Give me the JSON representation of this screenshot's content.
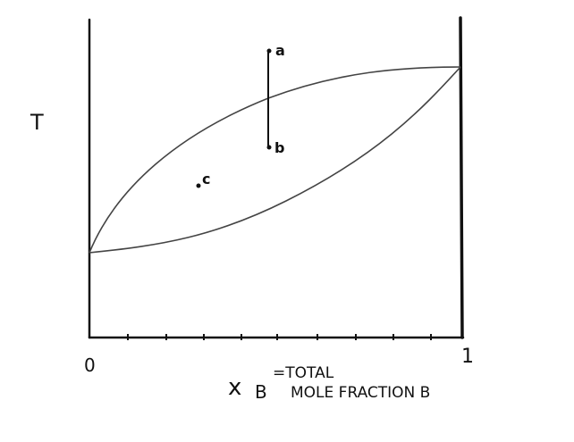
{
  "axes": {
    "y_label": "T",
    "x_ticks": [
      "0",
      "1"
    ],
    "x_label": {
      "symbol": "x",
      "subscript": "B",
      "line1": "=TOTAL",
      "line2": "MOLE FRACTION B"
    }
  },
  "points": [
    {
      "label": "a"
    },
    {
      "label": "b"
    },
    {
      "label": "c"
    }
  ]
}
